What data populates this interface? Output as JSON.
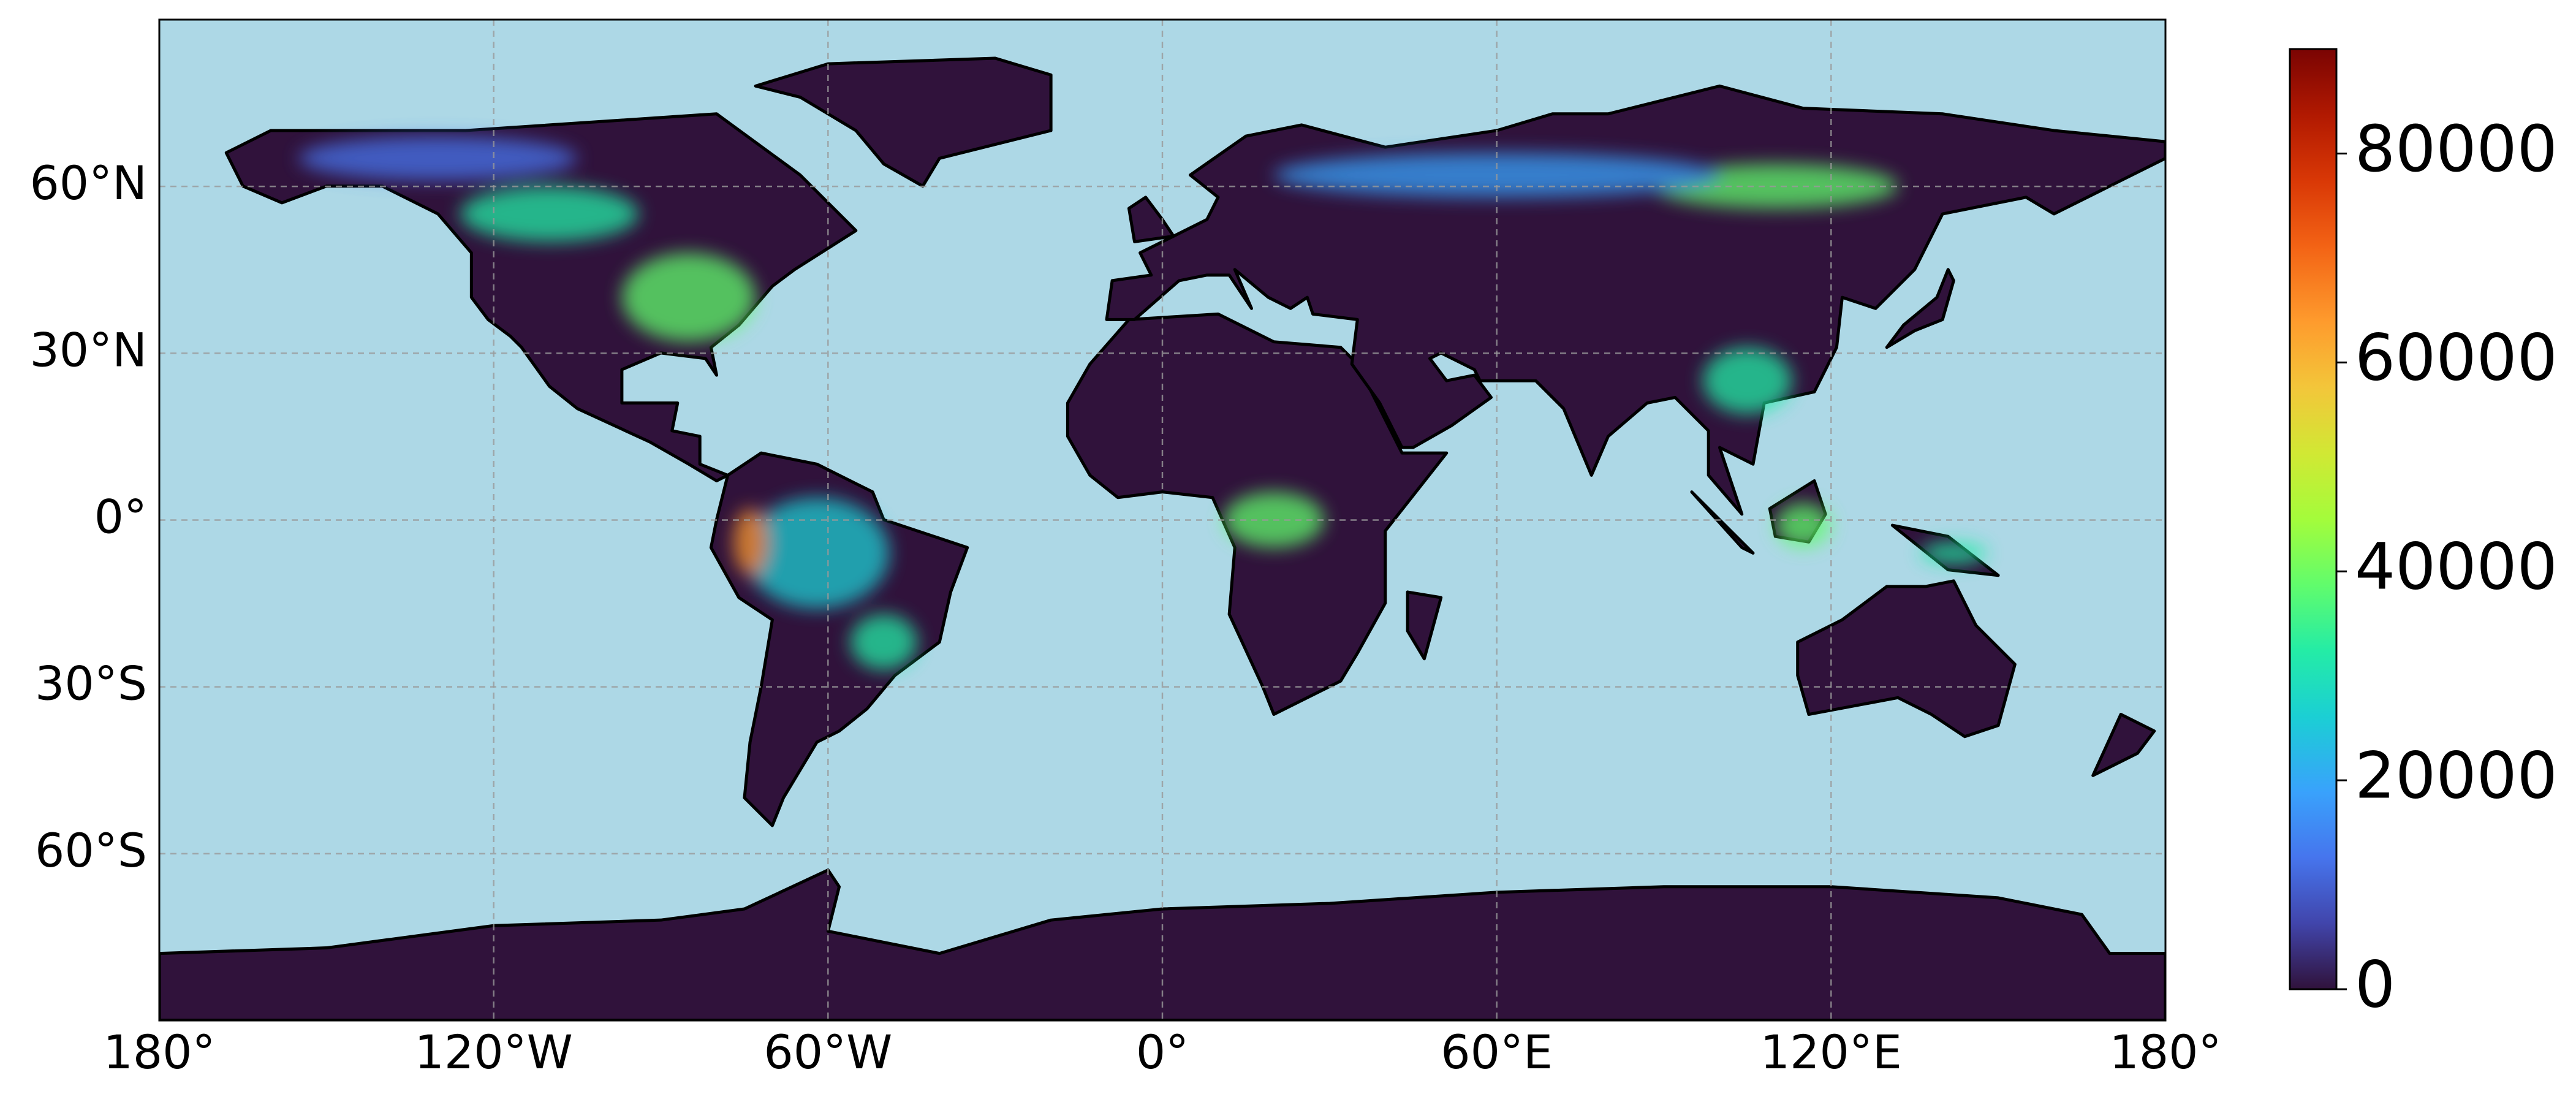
{
  "map": {
    "lonlim": [
      -180,
      180
    ],
    "latlim": [
      -90,
      90
    ],
    "lonticks": [
      {
        "value": -180,
        "label": "180°"
      },
      {
        "value": -120,
        "label": "120°W"
      },
      {
        "value": -60,
        "label": "60°W"
      },
      {
        "value": 0,
        "label": "0°"
      },
      {
        "value": 60,
        "label": "60°E"
      },
      {
        "value": 120,
        "label": "120°E"
      },
      {
        "value": 180,
        "label": "180°"
      }
    ],
    "latticks": [
      {
        "value": 60,
        "label": "60°N"
      },
      {
        "value": 30,
        "label": "30°N"
      },
      {
        "value": 0,
        "label": "0°"
      },
      {
        "value": -30,
        "label": "30°S"
      },
      {
        "value": -60,
        "label": "60°S"
      }
    ],
    "grid": true,
    "colorbar": {
      "lim": [
        0,
        90000
      ],
      "ticks": [
        0,
        20000,
        40000,
        60000,
        80000
      ]
    }
  }
}
